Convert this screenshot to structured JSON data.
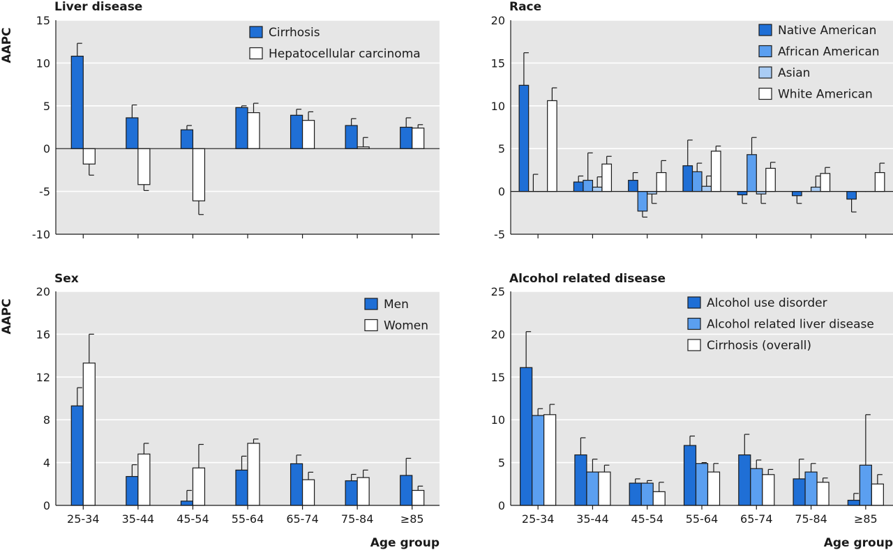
{
  "colors": {
    "panel_bg": "#e6e6e6",
    "grid": "#ffffff",
    "axis": "#1a1a1a",
    "dark_blue": "#1f6fd6",
    "mid_blue": "#5b9ff0",
    "light_blue": "#a9ccf4",
    "white": "#ffffff"
  },
  "chart_data": [
    {
      "type": "bar",
      "title": "Liver disease",
      "ylabel": "AAPC",
      "xlabel": "",
      "ylim": [
        -10,
        15
      ],
      "yticks": [
        -10,
        -5,
        0,
        5,
        10,
        15
      ],
      "categories": [
        "25-34",
        "35-44",
        "45-54",
        "55-64",
        "65-74",
        "75-84",
        "≥85"
      ],
      "legend_position": "top-right",
      "series": [
        {
          "name": "Cirrhosis",
          "color": "#1f6fd6",
          "values": [
            10.8,
            3.6,
            2.2,
            4.8,
            3.9,
            2.7,
            2.5
          ],
          "error_upper": [
            12.3,
            5.1,
            2.7,
            5.0,
            4.6,
            3.5,
            3.6
          ]
        },
        {
          "name": "Hepatocellular carcinoma",
          "color": "#ffffff",
          "values": [
            -1.8,
            -4.2,
            -6.1,
            4.2,
            3.3,
            0.2,
            2.4
          ],
          "error_upper": [
            -3.1,
            -4.9,
            -7.7,
            5.3,
            4.3,
            1.3,
            2.8
          ]
        }
      ]
    },
    {
      "type": "bar",
      "title": "Race",
      "ylabel": "",
      "xlabel": "",
      "ylim": [
        -5,
        20
      ],
      "yticks": [
        -5,
        0,
        5,
        10,
        15,
        20
      ],
      "categories": [
        "25-34",
        "35-44",
        "45-54",
        "55-64",
        "65-74",
        "75-84",
        "≥85"
      ],
      "legend_position": "top-right",
      "series": [
        {
          "name": "Native American",
          "color": "#1f6fd6",
          "values": [
            12.4,
            1.1,
            1.3,
            3.0,
            -0.4,
            -0.5,
            -0.9
          ],
          "error_upper": [
            16.2,
            1.8,
            2.2,
            6.0,
            -1.4,
            -1.4,
            -2.4
          ]
        },
        {
          "name": "African American",
          "color": "#5b9ff0",
          "values": [
            0.0,
            1.3,
            -2.3,
            2.3,
            4.3,
            0.0,
            0.0
          ],
          "error_upper": [
            2.0,
            4.5,
            -3.0,
            3.3,
            6.3,
            0.0,
            0.0
          ]
        },
        {
          "name": "Asian",
          "color": "#a9ccf4",
          "values": [
            0.0,
            0.5,
            -0.3,
            0.6,
            -0.3,
            0.5,
            0.0
          ],
          "error_upper": [
            0.0,
            1.7,
            -1.4,
            1.8,
            -1.4,
            1.8,
            0.0
          ]
        },
        {
          "name": "White American",
          "color": "#ffffff",
          "values": [
            10.6,
            3.2,
            2.2,
            4.7,
            2.7,
            2.1,
            2.2
          ],
          "error_upper": [
            12.1,
            4.1,
            3.6,
            5.3,
            3.4,
            2.8,
            3.3
          ]
        }
      ]
    },
    {
      "type": "bar",
      "title": "Sex",
      "ylabel": "AAPC",
      "xlabel": "Age group",
      "ylim": [
        0,
        20
      ],
      "yticks": [
        0,
        4,
        8,
        12,
        16,
        20
      ],
      "categories": [
        "25-34",
        "35-44",
        "45-54",
        "55-64",
        "65-74",
        "75-84",
        "≥85"
      ],
      "legend_position": "top-right",
      "series": [
        {
          "name": "Men",
          "color": "#1f6fd6",
          "values": [
            9.3,
            2.7,
            0.4,
            3.3,
            3.9,
            2.3,
            2.8
          ],
          "error_upper": [
            11.0,
            3.8,
            1.4,
            4.6,
            4.7,
            2.9,
            4.4
          ]
        },
        {
          "name": "Women",
          "color": "#ffffff",
          "values": [
            13.3,
            4.8,
            3.5,
            5.8,
            2.4,
            2.6,
            1.4
          ],
          "error_upper": [
            16.0,
            5.8,
            5.7,
            6.2,
            3.1,
            3.3,
            1.8
          ]
        }
      ]
    },
    {
      "type": "bar",
      "title": "Alcohol related disease",
      "ylabel": "",
      "xlabel": "Age group",
      "ylim": [
        0,
        25
      ],
      "yticks": [
        0,
        5,
        10,
        15,
        20,
        25
      ],
      "categories": [
        "25-34",
        "35-44",
        "45-54",
        "55-64",
        "65-74",
        "75-84",
        "≥85"
      ],
      "legend_position": "top-right",
      "series": [
        {
          "name": "Alcohol use disorder",
          "color": "#1f6fd6",
          "values": [
            16.1,
            5.9,
            2.6,
            7.0,
            5.9,
            3.1,
            0.6
          ],
          "error_upper": [
            20.3,
            7.9,
            3.1,
            8.1,
            8.3,
            5.4,
            1.4
          ]
        },
        {
          "name": "Alcohol related liver disease",
          "color": "#5b9ff0",
          "values": [
            10.5,
            3.9,
            2.6,
            4.9,
            4.3,
            3.9,
            4.7
          ],
          "error_upper": [
            11.3,
            5.4,
            2.9,
            5.0,
            5.3,
            4.9,
            10.6
          ]
        },
        {
          "name": "Cirrhosis (overall)",
          "color": "#ffffff",
          "values": [
            10.6,
            3.9,
            1.6,
            3.9,
            3.6,
            2.7,
            2.5
          ],
          "error_upper": [
            11.8,
            4.7,
            2.7,
            4.9,
            4.2,
            3.2,
            3.6
          ]
        }
      ]
    }
  ]
}
